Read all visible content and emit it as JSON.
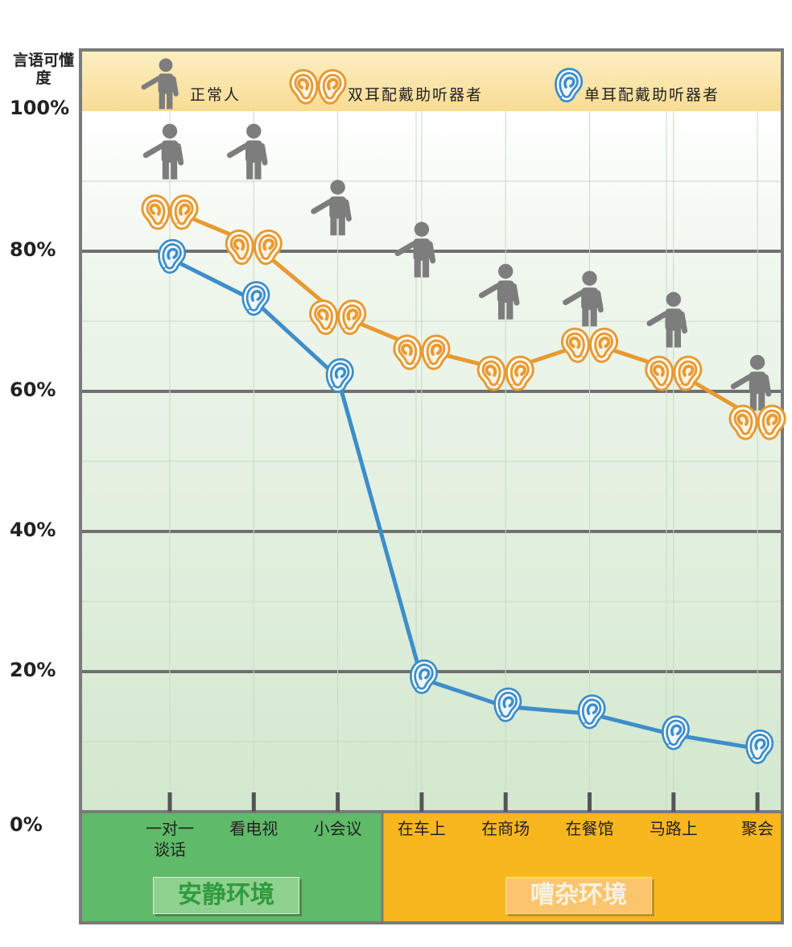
{
  "chart_data": {
    "type": "line",
    "y_axis_title": "言语可懂度",
    "y_ticks": [
      "100%",
      "80%",
      "60%",
      "40%",
      "20%",
      "0%"
    ],
    "ylim": [
      0,
      100
    ],
    "categories": [
      {
        "line1": "一对一",
        "line2": "谈话"
      },
      {
        "line1": "看电视",
        "line2": ""
      },
      {
        "line1": "小会议",
        "line2": ""
      },
      {
        "line1": "在车上",
        "line2": ""
      },
      {
        "line1": "在商场",
        "line2": ""
      },
      {
        "line1": "在餐馆",
        "line2": ""
      },
      {
        "line1": "马路上",
        "line2": ""
      },
      {
        "line1": "聚会",
        "line2": ""
      }
    ],
    "series": [
      {
        "name": "正常人",
        "values": [
          94,
          94,
          86,
          80,
          74,
          73,
          70,
          61
        ],
        "color": "#7d7d7d",
        "marker": "person-icon"
      },
      {
        "name": "双耳配戴助听器者",
        "values": [
          86,
          81,
          71,
          66,
          63,
          67,
          63,
          56
        ],
        "color": "#e89a32",
        "marker": "double-ear-icon"
      },
      {
        "name": "单耳配戴助听器者",
        "values": [
          79,
          73,
          62,
          19,
          15,
          14,
          11,
          9
        ],
        "color": "#3d8ec9",
        "marker": "single-ear-icon"
      }
    ],
    "environments": [
      {
        "label": "安静环境",
        "color": "#5fba69",
        "span": [
          0,
          2
        ]
      },
      {
        "label": "嘈杂环境",
        "color": "#f9b71f",
        "span": [
          3,
          7
        ]
      }
    ],
    "grid": true,
    "legend_position": "top"
  }
}
